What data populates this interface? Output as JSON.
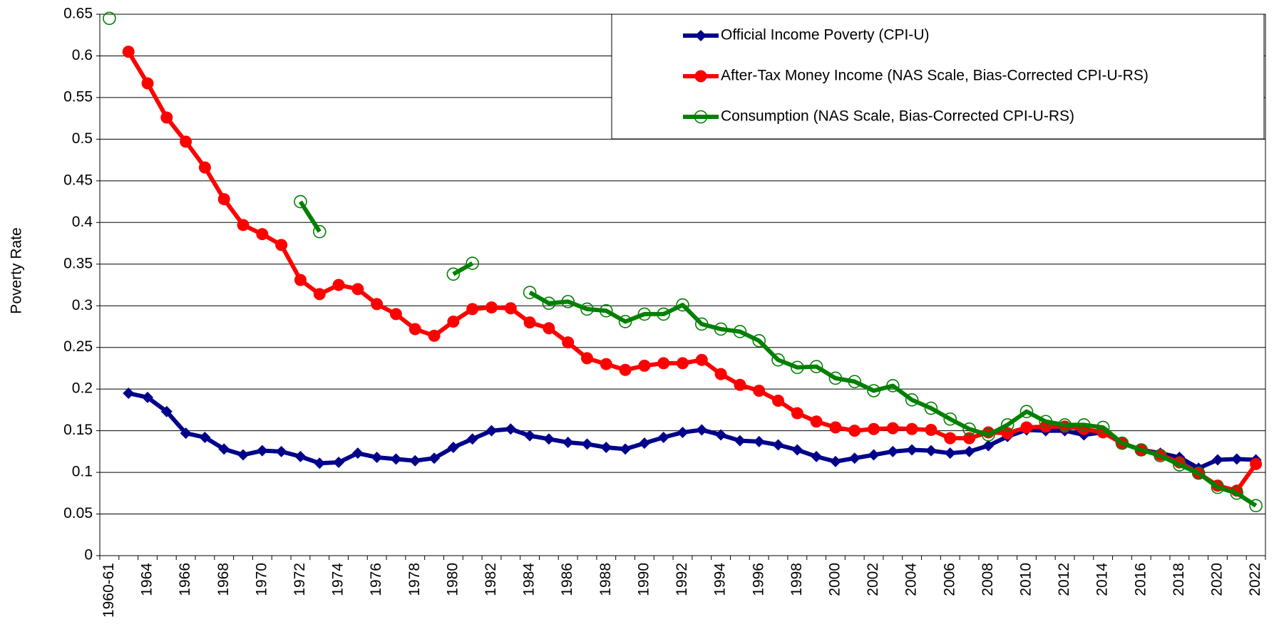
{
  "chart_data": {
    "type": "line",
    "y_label": "Poverty Rate",
    "categories": [
      "1960-61",
      null,
      "1964",
      null,
      "1966",
      null,
      "1968",
      null,
      "1970",
      null,
      "1972",
      null,
      "1974",
      null,
      "1976",
      null,
      "1978",
      null,
      "1980",
      null,
      "1982",
      null,
      "1984",
      null,
      "1986",
      null,
      "1988",
      null,
      "1990",
      null,
      "1992",
      null,
      "1994",
      null,
      "1996",
      null,
      "1998",
      null,
      "2000",
      null,
      "2002",
      null,
      "2004",
      null,
      "2006",
      null,
      "2008",
      null,
      "2010",
      null,
      "2012",
      null,
      "2014",
      null,
      "2016",
      null,
      "2018",
      null,
      "2020",
      null,
      "2022"
    ],
    "ylim": [
      0,
      0.65
    ],
    "yticks": [
      0,
      0.05,
      0.1,
      0.15,
      0.2,
      0.25,
      0.3,
      0.35,
      0.4,
      0.45,
      0.5,
      0.55,
      0.6,
      0.65
    ],
    "grid": true,
    "legend": "top-right",
    "series": [
      {
        "name": "Official Income Poverty (CPI-U)",
        "color": "#00008b",
        "marker": "diamond",
        "values": [
          null,
          0.195,
          0.19,
          0.173,
          0.147,
          0.142,
          0.128,
          0.121,
          0.126,
          0.125,
          0.119,
          0.111,
          0.112,
          0.123,
          0.118,
          0.116,
          0.114,
          0.117,
          0.13,
          0.14,
          0.15,
          0.152,
          0.144,
          0.14,
          0.136,
          0.134,
          0.13,
          0.128,
          0.135,
          0.142,
          0.148,
          0.151,
          0.145,
          0.138,
          0.137,
          0.133,
          0.127,
          0.119,
          0.113,
          0.117,
          0.121,
          0.125,
          0.127,
          0.126,
          0.123,
          0.125,
          0.132,
          0.143,
          0.151,
          0.15,
          0.15,
          0.145,
          0.148,
          0.135,
          0.127,
          0.123,
          0.118,
          0.105,
          0.115,
          0.116,
          0.115
        ]
      },
      {
        "name": "After-Tax Money Income (NAS Scale, Bias-Corrected CPI-U-RS)",
        "color": "#ff0000",
        "marker": "circle",
        "values": [
          null,
          0.605,
          0.567,
          0.526,
          0.497,
          0.466,
          0.428,
          0.397,
          0.386,
          0.373,
          0.331,
          0.314,
          0.325,
          0.32,
          0.302,
          0.29,
          0.272,
          0.264,
          0.281,
          0.296,
          0.298,
          0.297,
          0.28,
          0.273,
          0.256,
          0.237,
          0.23,
          0.223,
          0.228,
          0.231,
          0.231,
          0.235,
          0.218,
          0.205,
          0.198,
          0.186,
          0.171,
          0.161,
          0.154,
          0.15,
          0.152,
          0.153,
          0.152,
          0.151,
          0.141,
          0.141,
          0.148,
          0.147,
          0.154,
          0.155,
          0.155,
          0.152,
          0.148,
          0.135,
          0.127,
          0.121,
          0.112,
          0.099,
          0.084,
          0.078,
          0.11
        ]
      },
      {
        "name": "Consumption (NAS Scale, Bias-Corrected CPI-U-RS)",
        "color": "#008000",
        "marker": "open-circle",
        "values": [
          0.645,
          null,
          null,
          null,
          null,
          null,
          null,
          null,
          null,
          null,
          0.425,
          0.389,
          null,
          null,
          null,
          null,
          null,
          null,
          0.338,
          0.351,
          null,
          null,
          0.316,
          0.303,
          0.305,
          0.296,
          0.294,
          0.281,
          0.29,
          0.29,
          0.301,
          0.278,
          0.272,
          0.269,
          0.258,
          0.235,
          0.226,
          0.227,
          0.213,
          0.209,
          0.198,
          0.204,
          0.187,
          0.177,
          0.164,
          0.152,
          0.145,
          0.157,
          0.173,
          0.161,
          0.157,
          0.157,
          0.154,
          0.135,
          0.127,
          0.12,
          0.109,
          0.099,
          0.082,
          0.075,
          0.06
        ]
      }
    ]
  }
}
